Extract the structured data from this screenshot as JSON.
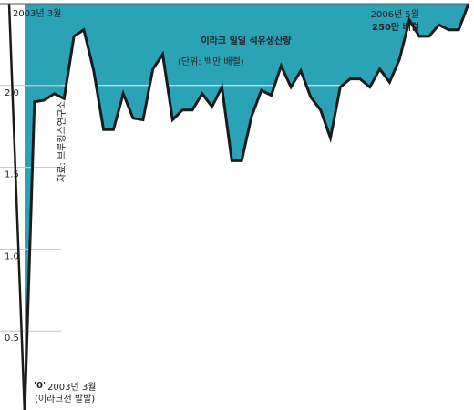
{
  "chart_data": {
    "type": "area",
    "title": "이라크 일일 석유생산량",
    "subtitle": "(단위: 백만 배럴)",
    "source": "자료: 브루킹스연구소",
    "start_label_top": "2003년 3월",
    "start_label_bottom": "2003년 3월",
    "start_note": "(이라크전 발발)",
    "end_label": "2006년 5월",
    "values": [
      0,
      1.9,
      1.91,
      1.95,
      1.92,
      2.3,
      2.34,
      2.09,
      1.73,
      1.73,
      1.95,
      1.8,
      1.79,
      2.1,
      2.19,
      1.79,
      1.85,
      1.85,
      1.95,
      1.87,
      1.99,
      1.54,
      1.54,
      1.81,
      1.97,
      1.94,
      2.12,
      1.99,
      2.09,
      1.93,
      1.85,
      1.68,
      1.99,
      2.04,
      2.04,
      1.99,
      2.1,
      2.02,
      2.16,
      2.4,
      2.3,
      2.3,
      2.37,
      2.34,
      2.34,
      2.5
    ],
    "value_labels": [
      "'0'",
      null,
      null,
      null,
      null,
      null,
      null,
      null,
      null,
      null,
      null,
      null,
      null,
      null,
      null,
      null,
      null,
      null,
      null,
      null,
      null,
      null,
      null,
      null,
      null,
      null,
      null,
      null,
      null,
      null,
      null,
      null,
      null,
      null,
      null,
      null,
      null,
      null,
      null,
      null,
      null,
      null,
      null,
      null,
      null,
      "250만 배럴"
    ],
    "color": "#2ba3b7",
    "line_color": "#1a1a1a",
    "ylim": [
      0,
      2.5
    ],
    "yticks": [
      0.5,
      {
        "value": 1,
        "label": "1.0"
      },
      1.5,
      {
        "value": 2,
        "label": "2.0"
      }
    ],
    "grid": true
  }
}
